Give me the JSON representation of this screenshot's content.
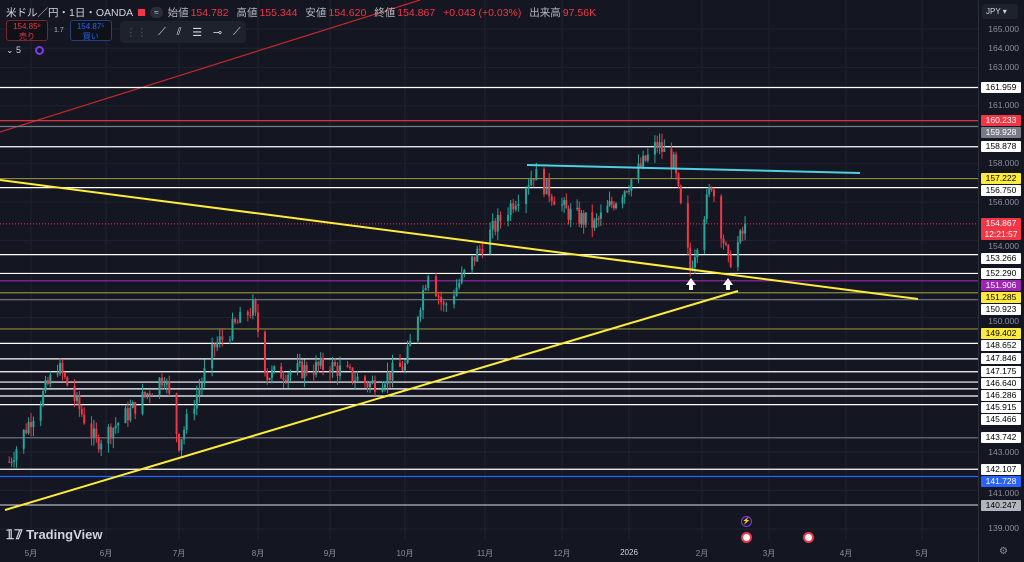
{
  "header": {
    "symbol": "米ドル／円・1日・OANDA",
    "open_label": "始値",
    "open": "154.782",
    "high_label": "高値",
    "high": "155.344",
    "low_label": "安値",
    "low": "154.620",
    "close_label": "終値",
    "close": "154.867",
    "change": "+0.043 (+0.03%)",
    "volume_label": "出来高",
    "volume": "97.56K",
    "status_pill": "≈"
  },
  "trade": {
    "sell_price": "154.85⁸",
    "sell_label": "売り",
    "spread": "1.7",
    "buy_price": "154.87⁵",
    "buy_label": "買い"
  },
  "indicators": {
    "collapse_count": "5"
  },
  "toolbar": {
    "icons": [
      "trend-line-icon",
      "parallel-channel-icon",
      "fib-icon",
      "horizontal-ray-icon",
      "ray-icon"
    ]
  },
  "axis": {
    "currency": "JPY",
    "ticks": [
      "165.000",
      "164.000",
      "163.000",
      "161.000",
      "158.000",
      "156.000",
      "154.000",
      "150.000",
      "143.000",
      "141.000",
      "139.000"
    ],
    "tick_values": [
      165,
      164,
      163,
      161,
      158,
      156,
      154,
      150,
      143,
      141,
      139
    ]
  },
  "price_levels": [
    {
      "text": "161.959",
      "value": 161.959,
      "bg": "#ffffff",
      "fg": "#000000",
      "line": "#ffffff"
    },
    {
      "text": "160.233",
      "value": 160.233,
      "bg": "#f23645",
      "fg": "#ffffff",
      "line": "#f23645"
    },
    {
      "text": "159.928",
      "value": 159.928,
      "bg": "#787b86",
      "fg": "#ffffff",
      "line": "#787b86"
    },
    {
      "text": "158.878",
      "value": 158.878,
      "bg": "#ffffff",
      "fg": "#000000",
      "line": "#ffffff"
    },
    {
      "text": "157.222",
      "value": 157.222,
      "bg": "#ffeb3b",
      "fg": "#000000",
      "line": "#8a8a3a"
    },
    {
      "text": "156.750",
      "value": 156.75,
      "bg": "#ffffff",
      "fg": "#000000",
      "line": "#ffffff"
    },
    {
      "text": "153.266",
      "value": 153.266,
      "bg": "#ffffff",
      "fg": "#000000",
      "line": "#ffffff"
    },
    {
      "text": "152.290",
      "value": 152.29,
      "bg": "#ffffff",
      "fg": "#000000",
      "line": "#ffffff"
    },
    {
      "text": "151.906",
      "value": 151.906,
      "bg": "#9c27b0",
      "fg": "#ffffff",
      "line": "#9c27b0"
    },
    {
      "text": "151.285",
      "value": 151.285,
      "bg": "#ffeb3b",
      "fg": "#000000",
      "line": "#8a8a3a"
    },
    {
      "text": "150.923",
      "value": 150.923,
      "bg": "#ffffff",
      "fg": "#000000",
      "line": "#787b86"
    },
    {
      "text": "149.402",
      "value": 149.402,
      "bg": "#ffeb3b",
      "fg": "#000000",
      "line": "#8a8a3a"
    },
    {
      "text": "148.652",
      "value": 148.652,
      "bg": "#ffffff",
      "fg": "#000000",
      "line": "#ffffff"
    },
    {
      "text": "147.846",
      "value": 147.846,
      "bg": "#ffffff",
      "fg": "#000000",
      "line": "#ffffff"
    },
    {
      "text": "147.175",
      "value": 147.175,
      "bg": "#ffffff",
      "fg": "#000000",
      "line": "#ffffff"
    },
    {
      "text": "146.640",
      "value": 146.64,
      "bg": "#ffffff",
      "fg": "#000000",
      "line": "#ffffff"
    },
    {
      "text": "146.286",
      "value": 146.286,
      "bg": "#ffffff",
      "fg": "#000000",
      "line": "#ffffff"
    },
    {
      "text": "145.915",
      "value": 145.915,
      "bg": "#ffffff",
      "fg": "#000000",
      "line": "#ffffff"
    },
    {
      "text": "145.466",
      "value": 145.466,
      "bg": "#ffffff",
      "fg": "#000000",
      "line": "#ffffff"
    },
    {
      "text": "143.742",
      "value": 143.742,
      "bg": "#ffffff",
      "fg": "#000000",
      "line": "#787b86"
    },
    {
      "text": "142.107",
      "value": 142.107,
      "bg": "#ffffff",
      "fg": "#000000",
      "line": "#ffffff"
    },
    {
      "text": "141.728",
      "value": 141.728,
      "bg": "#2962ff",
      "fg": "#ffffff",
      "line": "#2962ff"
    },
    {
      "text": "140.247",
      "value": 140.247,
      "bg": "#b2b5be",
      "fg": "#000000",
      "line": "#b2b5be"
    }
  ],
  "last_price": {
    "price": "154.867",
    "countdown": "12:21:57",
    "value": 154.867,
    "color": "#f23645"
  },
  "xaxis": {
    "labels": [
      "5月",
      "6月",
      "7月",
      "8月",
      "9月",
      "10月",
      "11月",
      "12月",
      "2026",
      "2月",
      "3月",
      "4月",
      "5月"
    ]
  },
  "price_path": [
    [
      "2025-04-22",
      142.5
    ],
    [
      "2025-05-12",
      147.5
    ],
    [
      "2025-05-28",
      143.5
    ],
    [
      "2025-06-10",
      145
    ],
    [
      "2025-06-25",
      147
    ],
    [
      "2025-07-01",
      143.5
    ],
    [
      "2025-07-15",
      148.5
    ],
    [
      "2025-07-30",
      150.5
    ],
    [
      "2025-08-05",
      147
    ],
    [
      "2025-09-01",
      147.5
    ],
    [
      "2025-09-17",
      146.5
    ],
    [
      "2025-10-01",
      147.5
    ],
    [
      "2025-10-10",
      152.5
    ],
    [
      "2025-10-16",
      150.5
    ],
    [
      "2025-11-01",
      154
    ],
    [
      "2025-11-20",
      157.5
    ],
    [
      "2025-12-03",
      155.5
    ],
    [
      "2025-12-16",
      154.8
    ],
    [
      "2026-01-01",
      157
    ],
    [
      "2026-01-13",
      159
    ],
    [
      "2026-01-20",
      158
    ],
    [
      "2026-01-27",
      152.5
    ],
    [
      "2026-02-05",
      157
    ],
    [
      "2026-02-12",
      152.8
    ],
    [
      "2026-02-20",
      154.87
    ]
  ],
  "colors": {
    "up": "#26a69a",
    "down": "#f23645",
    "trendline": "#ffeb3b",
    "resistance": "#4dd0e1",
    "background": "#141722"
  },
  "brand": "TradingView"
}
